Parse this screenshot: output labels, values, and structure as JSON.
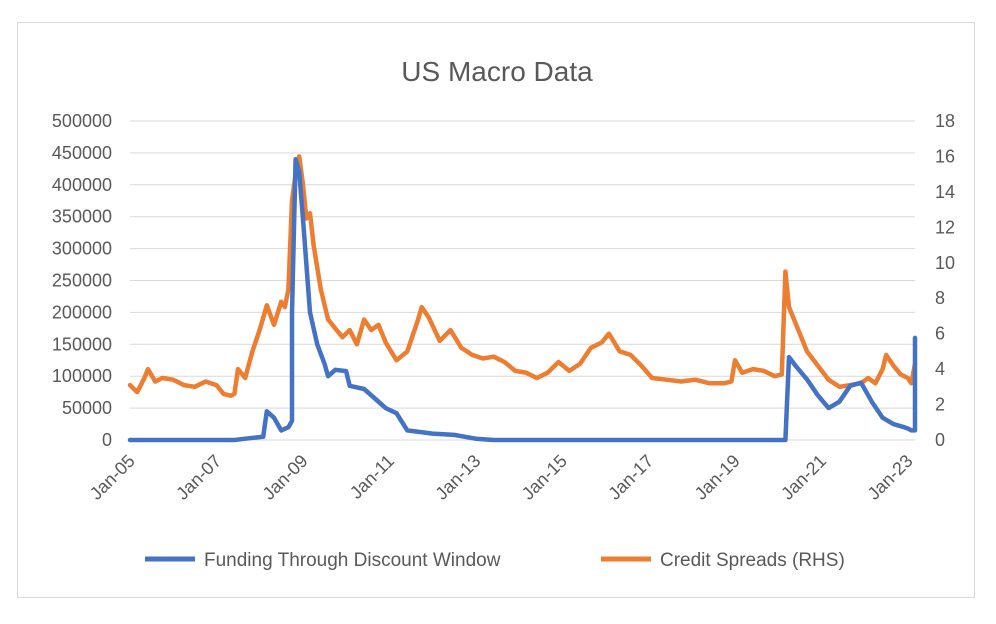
{
  "chart_data": {
    "type": "line",
    "title": "US Macro Data",
    "x_tick_labels": [
      "Jan-05",
      "Jan-07",
      "Jan-09",
      "Jan-11",
      "Jan-13",
      "Jan-15",
      "Jan-17",
      "Jan-19",
      "Jan-21",
      "Jan-23"
    ],
    "x_range": [
      "2005-01",
      "2023-03"
    ],
    "y_left": {
      "min": 0,
      "max": 500000,
      "ticks": [
        "0",
        "50000",
        "100000",
        "150000",
        "200000",
        "250000",
        "300000",
        "350000",
        "400000",
        "450000",
        "500000"
      ]
    },
    "y_right": {
      "min": 0,
      "max": 18,
      "ticks": [
        "0",
        "2",
        "4",
        "6",
        "8",
        "10",
        "12",
        "14",
        "16",
        "18"
      ]
    },
    "grid": true,
    "legend_position": "bottom",
    "series": [
      {
        "name": "Funding Through Discount Window",
        "axis": "left",
        "color": "#4472C4",
        "points": [
          [
            "2005-01",
            0
          ],
          [
            "2007-06",
            0
          ],
          [
            "2007-09",
            2000
          ],
          [
            "2008-02",
            5000
          ],
          [
            "2008-03",
            45000
          ],
          [
            "2008-05",
            35000
          ],
          [
            "2008-07",
            15000
          ],
          [
            "2008-09",
            20000
          ],
          [
            "2008-10",
            30000
          ],
          [
            "2008-10",
            200000
          ],
          [
            "2008-11",
            440000
          ],
          [
            "2008-12",
            420000
          ],
          [
            "2009-01",
            350000
          ],
          [
            "2009-03",
            200000
          ],
          [
            "2009-05",
            150000
          ],
          [
            "2009-07",
            120000
          ],
          [
            "2009-08",
            100000
          ],
          [
            "2009-10",
            110000
          ],
          [
            "2010-01",
            108000
          ],
          [
            "2010-02",
            85000
          ],
          [
            "2010-06",
            80000
          ],
          [
            "2010-09",
            65000
          ],
          [
            "2010-12",
            50000
          ],
          [
            "2011-03",
            42000
          ],
          [
            "2011-06",
            15000
          ],
          [
            "2012-01",
            10000
          ],
          [
            "2012-07",
            8000
          ],
          [
            "2013-01",
            2000
          ],
          [
            "2013-06",
            0
          ],
          [
            "2020-03",
            0
          ],
          [
            "2020-04",
            130000
          ],
          [
            "2020-06",
            115000
          ],
          [
            "2020-09",
            95000
          ],
          [
            "2020-12",
            70000
          ],
          [
            "2021-03",
            50000
          ],
          [
            "2021-06",
            60000
          ],
          [
            "2021-09",
            85000
          ],
          [
            "2021-12",
            90000
          ],
          [
            "2022-03",
            60000
          ],
          [
            "2022-06",
            35000
          ],
          [
            "2022-09",
            25000
          ],
          [
            "2022-12",
            20000
          ],
          [
            "2023-01",
            18000
          ],
          [
            "2023-02",
            15000
          ],
          [
            "2023-03",
            15000
          ],
          [
            "2023-03",
            160000
          ]
        ]
      },
      {
        "name": "Credit Spreads (RHS)",
        "axis": "right",
        "color": "#ED7D31",
        "points": [
          [
            "2005-01",
            3.1
          ],
          [
            "2005-03",
            2.7
          ],
          [
            "2005-05",
            3.5
          ],
          [
            "2005-06",
            4.0
          ],
          [
            "2005-08",
            3.3
          ],
          [
            "2005-10",
            3.5
          ],
          [
            "2006-01",
            3.4
          ],
          [
            "2006-04",
            3.1
          ],
          [
            "2006-07",
            3.0
          ],
          [
            "2006-10",
            3.3
          ],
          [
            "2007-01",
            3.1
          ],
          [
            "2007-03",
            2.6
          ],
          [
            "2007-05",
            2.5
          ],
          [
            "2007-06",
            2.6
          ],
          [
            "2007-07",
            4.0
          ],
          [
            "2007-09",
            3.5
          ],
          [
            "2007-11",
            5.0
          ],
          [
            "2008-01",
            6.2
          ],
          [
            "2008-03",
            7.6
          ],
          [
            "2008-05",
            6.5
          ],
          [
            "2008-07",
            7.8
          ],
          [
            "2008-08",
            7.5
          ],
          [
            "2008-09",
            8.5
          ],
          [
            "2008-10",
            13.5
          ],
          [
            "2008-11",
            15.0
          ],
          [
            "2008-12",
            16.0
          ],
          [
            "2009-01",
            14.5
          ],
          [
            "2009-02",
            12.5
          ],
          [
            "2009-03",
            12.8
          ],
          [
            "2009-04",
            11.0
          ],
          [
            "2009-06",
            8.5
          ],
          [
            "2009-08",
            6.8
          ],
          [
            "2009-10",
            6.3
          ],
          [
            "2009-12",
            5.8
          ],
          [
            "2010-02",
            6.2
          ],
          [
            "2010-04",
            5.4
          ],
          [
            "2010-06",
            6.8
          ],
          [
            "2010-08",
            6.2
          ],
          [
            "2010-10",
            6.5
          ],
          [
            "2010-12",
            5.5
          ],
          [
            "2011-03",
            4.5
          ],
          [
            "2011-06",
            5.0
          ],
          [
            "2011-09",
            6.8
          ],
          [
            "2011-10",
            7.5
          ],
          [
            "2011-12",
            6.9
          ],
          [
            "2012-03",
            5.6
          ],
          [
            "2012-06",
            6.2
          ],
          [
            "2012-09",
            5.2
          ],
          [
            "2012-12",
            4.8
          ],
          [
            "2013-03",
            4.6
          ],
          [
            "2013-06",
            4.7
          ],
          [
            "2013-09",
            4.4
          ],
          [
            "2013-12",
            3.9
          ],
          [
            "2014-03",
            3.8
          ],
          [
            "2014-06",
            3.5
          ],
          [
            "2014-09",
            3.8
          ],
          [
            "2014-12",
            4.4
          ],
          [
            "2015-03",
            3.9
          ],
          [
            "2015-06",
            4.3
          ],
          [
            "2015-09",
            5.2
          ],
          [
            "2015-12",
            5.5
          ],
          [
            "2016-02",
            6.0
          ],
          [
            "2016-05",
            5.0
          ],
          [
            "2016-08",
            4.8
          ],
          [
            "2016-11",
            4.2
          ],
          [
            "2017-02",
            3.5
          ],
          [
            "2017-06",
            3.4
          ],
          [
            "2017-10",
            3.3
          ],
          [
            "2018-02",
            3.4
          ],
          [
            "2018-06",
            3.2
          ],
          [
            "2018-10",
            3.2
          ],
          [
            "2018-12",
            3.3
          ],
          [
            "2019-01",
            4.5
          ],
          [
            "2019-03",
            3.8
          ],
          [
            "2019-06",
            4.0
          ],
          [
            "2019-09",
            3.9
          ],
          [
            "2019-12",
            3.6
          ],
          [
            "2020-02",
            3.7
          ],
          [
            "2020-03",
            9.5
          ],
          [
            "2020-04",
            7.5
          ],
          [
            "2020-06",
            6.5
          ],
          [
            "2020-09",
            5.0
          ],
          [
            "2020-12",
            4.2
          ],
          [
            "2021-03",
            3.4
          ],
          [
            "2021-06",
            3.0
          ],
          [
            "2021-09",
            3.1
          ],
          [
            "2021-12",
            3.2
          ],
          [
            "2022-02",
            3.5
          ],
          [
            "2022-04",
            3.2
          ],
          [
            "2022-06",
            4.0
          ],
          [
            "2022-07",
            4.8
          ],
          [
            "2022-09",
            4.2
          ],
          [
            "2022-11",
            3.7
          ],
          [
            "2023-01",
            3.5
          ],
          [
            "2023-02",
            3.2
          ],
          [
            "2023-03",
            4.3
          ]
        ]
      }
    ]
  }
}
